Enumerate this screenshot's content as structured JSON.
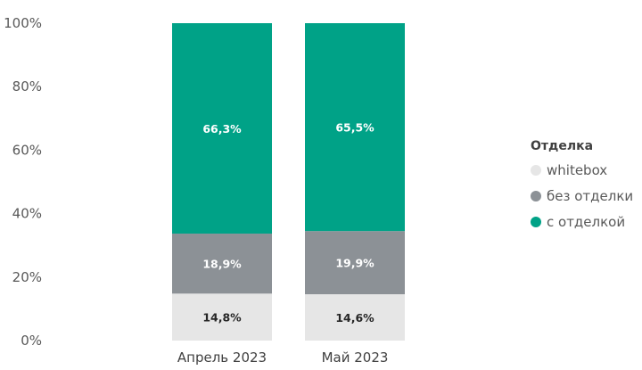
{
  "chart_data": {
    "type": "bar",
    "stacked": true,
    "categories": [
      "Апрель 2023",
      "Май 2023"
    ],
    "series": [
      {
        "name": "whitebox",
        "color": "#e6e6e6",
        "label_color": "#262626",
        "values": [
          14.8,
          14.6
        ],
        "labels": [
          "14,8%",
          "14,6%"
        ]
      },
      {
        "name": "без отделки",
        "color": "#8c9196",
        "label_color": "#ffffff",
        "values": [
          18.9,
          19.9
        ],
        "labels": [
          "18,9%",
          "19,9%"
        ]
      },
      {
        "name": "с отделкой",
        "color": "#00a287",
        "label_color": "#ffffff",
        "values": [
          66.3,
          65.5
        ],
        "labels": [
          "66,3%",
          "65,5%"
        ]
      }
    ],
    "ylim": [
      0,
      100
    ],
    "yticks": [
      0,
      20,
      40,
      60,
      80,
      100
    ],
    "ytick_labels": [
      "0%",
      "20%",
      "40%",
      "60%",
      "80%",
      "100%"
    ],
    "grid": false,
    "legend_position": "right",
    "legend_title": "Отделка"
  }
}
